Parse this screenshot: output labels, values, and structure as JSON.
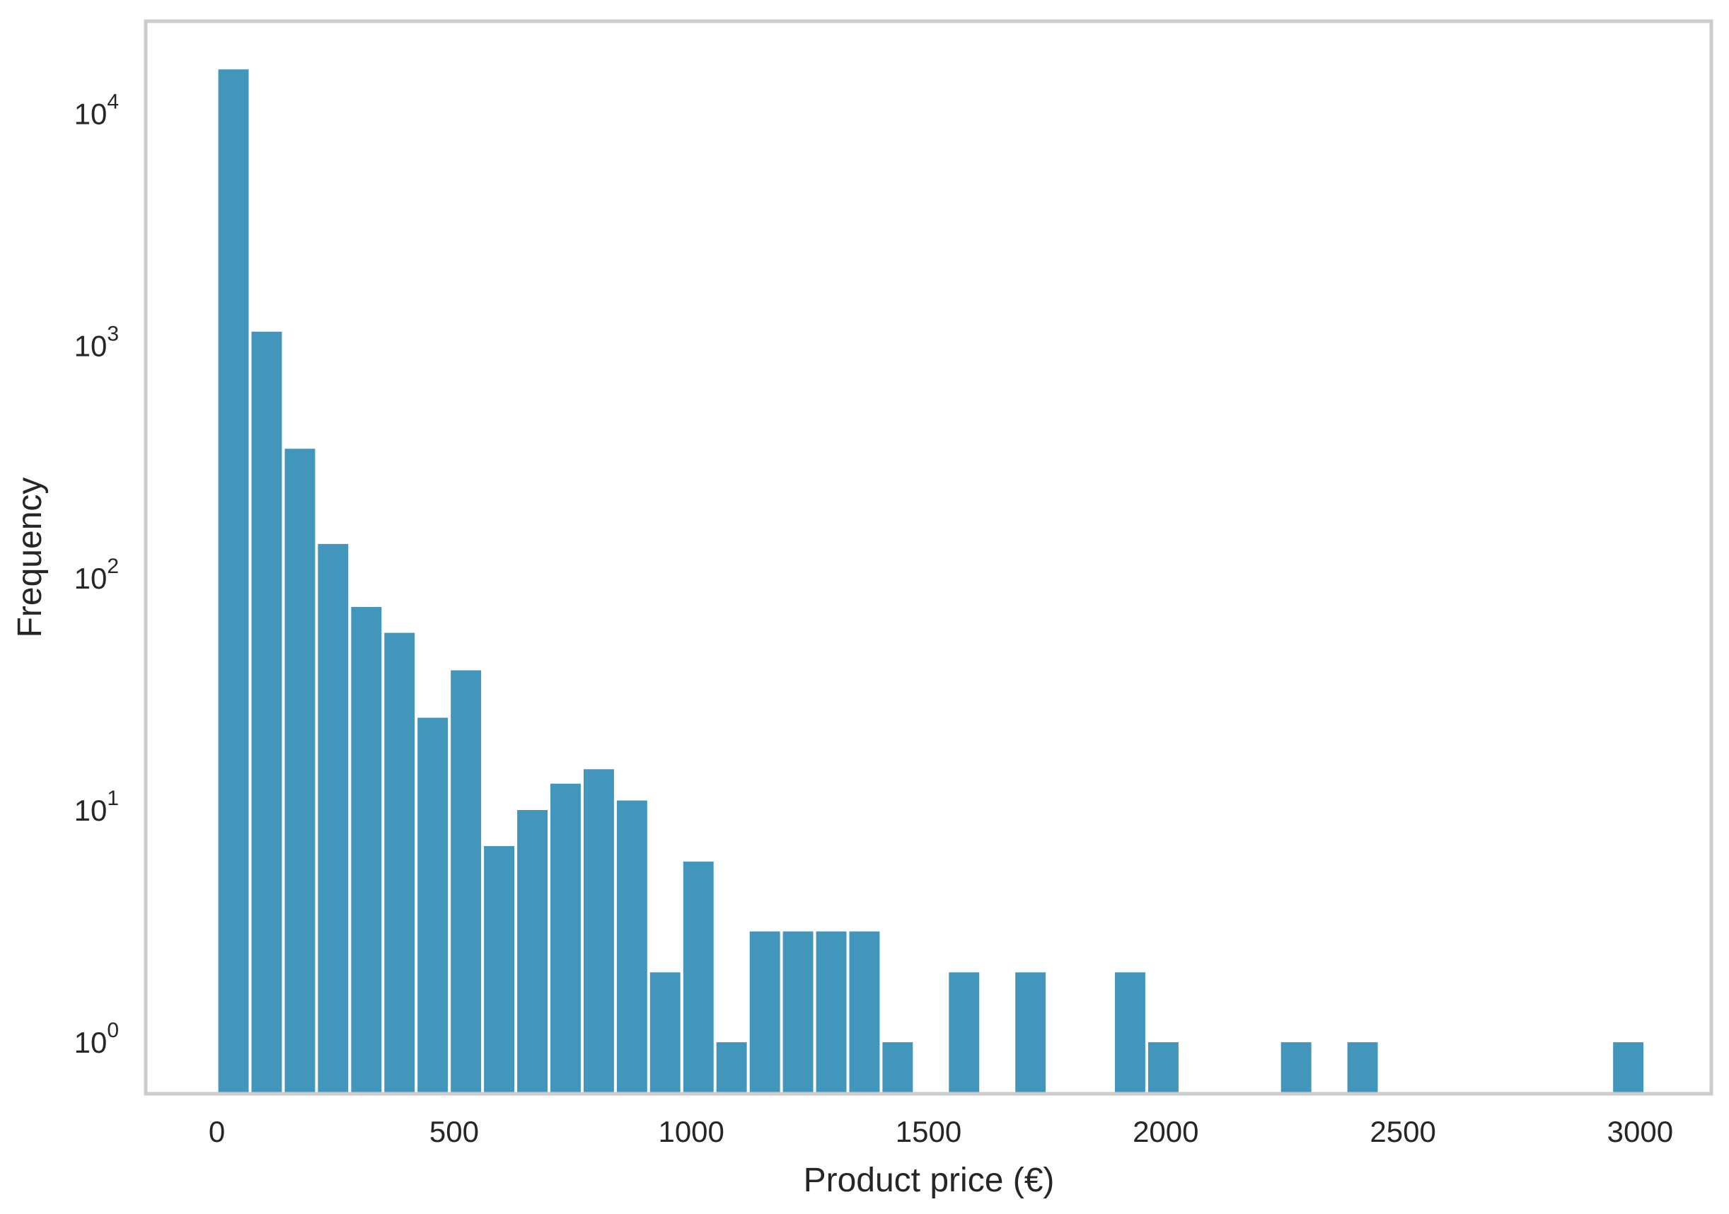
{
  "colors": {
    "bar": "#4296bb",
    "frame": "#cccccc",
    "text": "#262626",
    "background": "#ffffff"
  },
  "chart_data": {
    "type": "bar",
    "title": "",
    "xlabel": "Product price (€)",
    "ylabel": "Frequency",
    "yscale": "log",
    "grid": false,
    "legend": "none",
    "xlim": [
      -150,
      3150
    ],
    "ylim": [
      0.6,
      25000
    ],
    "bin_width": 70,
    "x_ticks": [
      0,
      500,
      1000,
      1500,
      2000,
      2500,
      3000
    ],
    "x_tick_labels": [
      "0",
      "500",
      "1000",
      "1500",
      "2000",
      "2500",
      "3000"
    ],
    "y_ticks": [
      1,
      10,
      100,
      1000,
      10000
    ],
    "y_tick_labels": [
      {
        "base": "10",
        "exp": "0"
      },
      {
        "base": "10",
        "exp": "1"
      },
      {
        "base": "10",
        "exp": "2"
      },
      {
        "base": "10",
        "exp": "3"
      },
      {
        "base": "10",
        "exp": "4"
      }
    ],
    "bins": [
      {
        "x": 0,
        "count": 15500
      },
      {
        "x": 70,
        "count": 1150
      },
      {
        "x": 140,
        "count": 360
      },
      {
        "x": 210,
        "count": 140
      },
      {
        "x": 280,
        "count": 75
      },
      {
        "x": 350,
        "count": 58
      },
      {
        "x": 420,
        "count": 25
      },
      {
        "x": 490,
        "count": 40
      },
      {
        "x": 560,
        "count": 7
      },
      {
        "x": 630,
        "count": 10
      },
      {
        "x": 700,
        "count": 13
      },
      {
        "x": 770,
        "count": 15
      },
      {
        "x": 840,
        "count": 11
      },
      {
        "x": 910,
        "count": 2
      },
      {
        "x": 980,
        "count": 6
      },
      {
        "x": 1050,
        "count": 1
      },
      {
        "x": 1120,
        "count": 3
      },
      {
        "x": 1190,
        "count": 3
      },
      {
        "x": 1260,
        "count": 3
      },
      {
        "x": 1330,
        "count": 3
      },
      {
        "x": 1400,
        "count": 1
      },
      {
        "x": 1540,
        "count": 2
      },
      {
        "x": 1680,
        "count": 2
      },
      {
        "x": 1890,
        "count": 2
      },
      {
        "x": 1960,
        "count": 1
      },
      {
        "x": 2240,
        "count": 1
      },
      {
        "x": 2380,
        "count": 1
      },
      {
        "x": 2940,
        "count": 1
      }
    ]
  }
}
